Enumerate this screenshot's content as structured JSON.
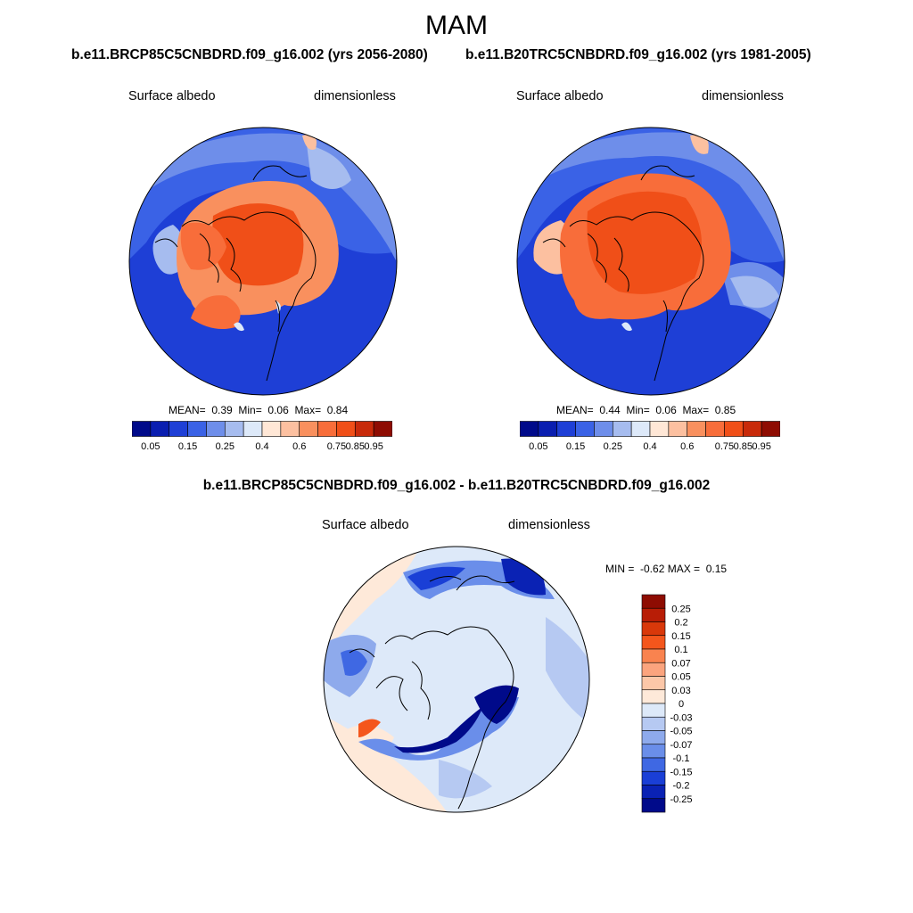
{
  "figure": {
    "season": "MAM",
    "variable": "Surface albedo",
    "units": "dimensionless"
  },
  "panel_left": {
    "title": "b.e11.BRCP85C5CNBDRD.f09_g16.002 (yrs 2056-2080)",
    "variable": "Surface albedo",
    "units": "dimensionless",
    "stats": {
      "mean_label": "MEAN=",
      "mean": "0.39",
      "min_label": "Min=",
      "min": "0.06",
      "max_label": "Max=",
      "max": "0.84"
    }
  },
  "panel_right": {
    "title": "b.e11.B20TRC5CNBDRD.f09_g16.002 (yrs 1981-2005)",
    "variable": "Surface albedo",
    "units": "dimensionless",
    "stats": {
      "mean_label": "MEAN=",
      "mean": "0.44",
      "min_label": "Min=",
      "min": "0.06",
      "max_label": "Max=",
      "max": "0.85"
    }
  },
  "panel_diff": {
    "title": "b.e11.BRCP85C5CNBDRD.f09_g16.002 - b.e11.B20TRC5CNBDRD.f09_g16.002",
    "variable": "Surface albedo",
    "units": "dimensionless",
    "stats": {
      "min_label": "MIN =",
      "min": "-0.62",
      "max_label": "MAX =",
      "max": "0.15"
    }
  },
  "colorbar_abs": {
    "colors": [
      "#000a8a",
      "#0a1eb0",
      "#1e3fd6",
      "#3a62e6",
      "#6e8eea",
      "#a6bcef",
      "#dde9f9",
      "#ffe7d6",
      "#fcc0a0",
      "#f9905e",
      "#f86d3a",
      "#f04f18",
      "#c82a0a",
      "#8e0c02"
    ],
    "labels": [
      "0.05",
      "0.15",
      "0.25",
      "0.4",
      "0.6",
      "0.75",
      "0.85",
      "0.95"
    ]
  },
  "colorbar_diff": {
    "colors": [
      "#8e0c02",
      "#b81d06",
      "#d9380a",
      "#f4561c",
      "#f9834f",
      "#fba47e",
      "#fcc7a8",
      "#fee9d9",
      "#dde9f9",
      "#b6c9f2",
      "#8eaaec",
      "#6a8ee9",
      "#3f68e3",
      "#1a3fd6",
      "#0a22b4",
      "#000a8a"
    ],
    "labels": [
      "0.25",
      "0.2",
      "0.15",
      "0.1",
      "0.07",
      "0.05",
      "0.03",
      "0",
      "-0.03",
      "-0.05",
      "-0.07",
      "-0.1",
      "-0.15",
      "-0.2",
      "-0.25"
    ]
  }
}
